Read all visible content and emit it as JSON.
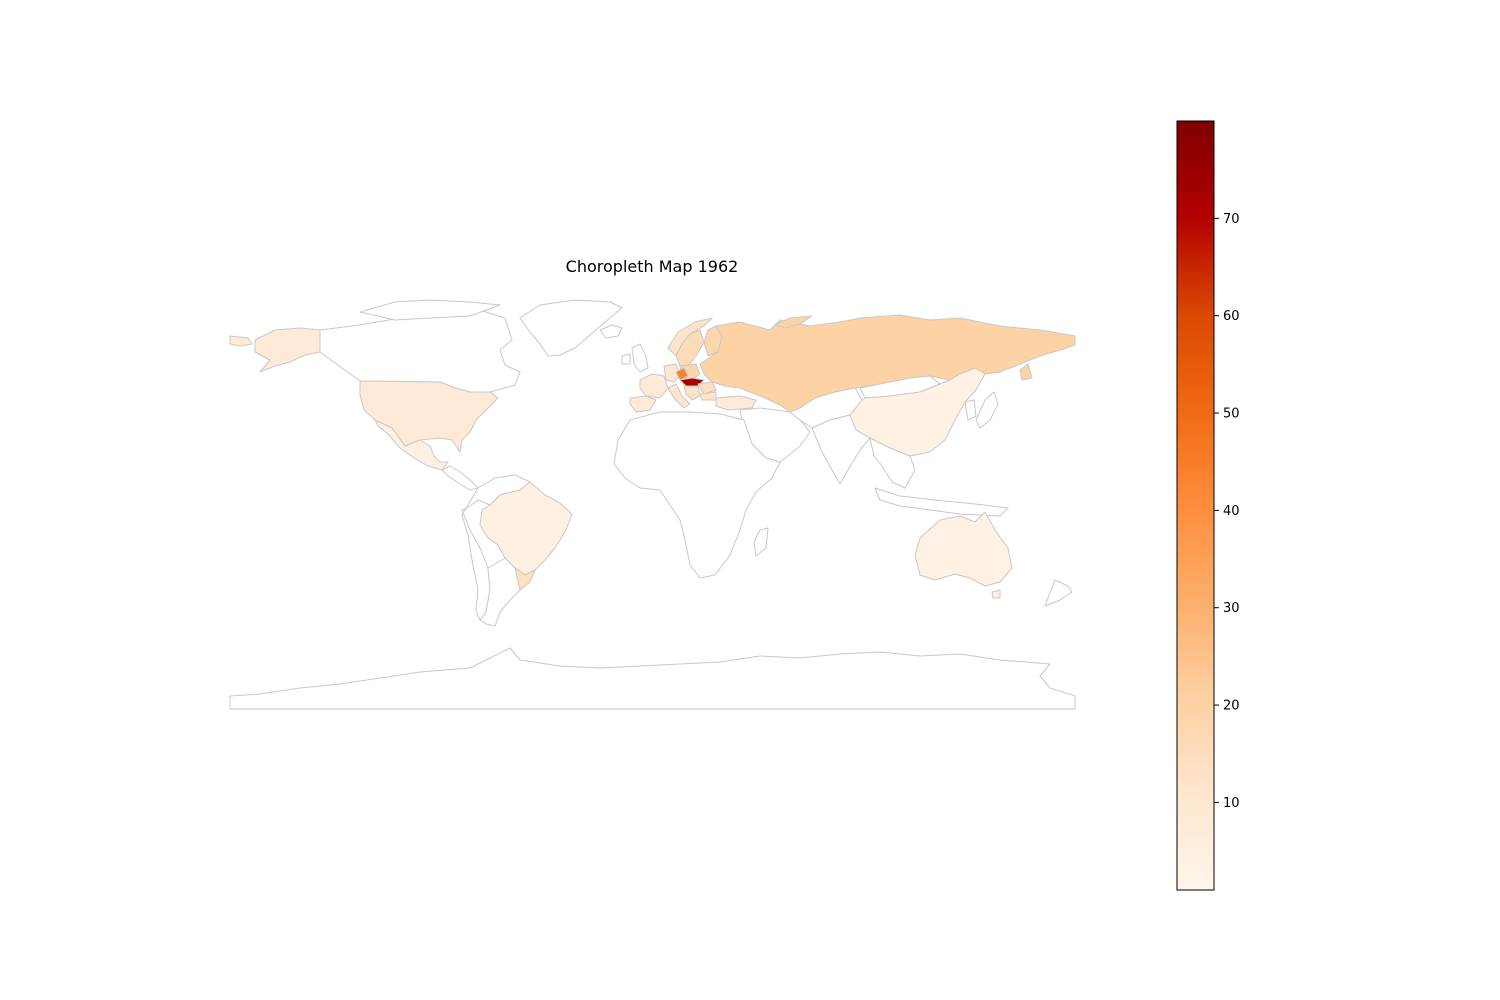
{
  "title": "Choropleth Map 1962",
  "colors": {
    "border": "#c8c8c8",
    "no_data": "#ffffff",
    "scale": [
      "#fff5eb",
      "#fee6ce",
      "#fdd0a2",
      "#fdae6b",
      "#fd8d3c",
      "#f16913",
      "#d94801",
      "#b30000",
      "#7f0000"
    ]
  },
  "colorbar": {
    "min": 1,
    "max": 80,
    "ticks": [
      10,
      20,
      30,
      40,
      50,
      60,
      70
    ],
    "tick_labels": [
      "10",
      "20",
      "30",
      "40",
      "50",
      "60",
      "70"
    ]
  },
  "regions": [
    {
      "name": "Russia",
      "value": 20
    },
    {
      "name": "United States",
      "value": 8
    },
    {
      "name": "Alaska",
      "value": 8
    },
    {
      "name": "Mexico",
      "value": 4
    },
    {
      "name": "Brazil",
      "value": 4
    },
    {
      "name": "Uruguay",
      "value": 14
    },
    {
      "name": "Australia",
      "value": 3
    },
    {
      "name": "China",
      "value": 3
    },
    {
      "name": "Sweden",
      "value": 16
    },
    {
      "name": "Norway",
      "value": 12
    },
    {
      "name": "Finland",
      "value": 18
    },
    {
      "name": "Poland",
      "value": 18
    },
    {
      "name": "Germany",
      "value": 10
    },
    {
      "name": "France",
      "value": 8
    },
    {
      "name": "Spain",
      "value": 8
    },
    {
      "name": "Italy",
      "value": 10
    },
    {
      "name": "Czechoslovakia",
      "value": 44
    },
    {
      "name": "Hungary",
      "value": 72
    },
    {
      "name": "Yugoslavia",
      "value": 12
    },
    {
      "name": "Romania",
      "value": 14
    },
    {
      "name": "Bulgaria",
      "value": 12
    },
    {
      "name": "Turkey",
      "value": 8
    },
    {
      "name": "Greenland"
    },
    {
      "name": "Canada"
    },
    {
      "name": "Central America"
    },
    {
      "name": "South America West"
    },
    {
      "name": "Argentina"
    },
    {
      "name": "Africa"
    },
    {
      "name": "Madagascar"
    },
    {
      "name": "Middle East"
    },
    {
      "name": "Central Asia"
    },
    {
      "name": "India"
    },
    {
      "name": "Southeast Asia"
    },
    {
      "name": "Indonesia"
    },
    {
      "name": "Japan"
    },
    {
      "name": "Korea"
    },
    {
      "name": "Mongolia"
    },
    {
      "name": "Iceland"
    },
    {
      "name": "United Kingdom"
    },
    {
      "name": "Ireland"
    },
    {
      "name": "New Zealand"
    },
    {
      "name": "Antarctica"
    }
  ]
}
